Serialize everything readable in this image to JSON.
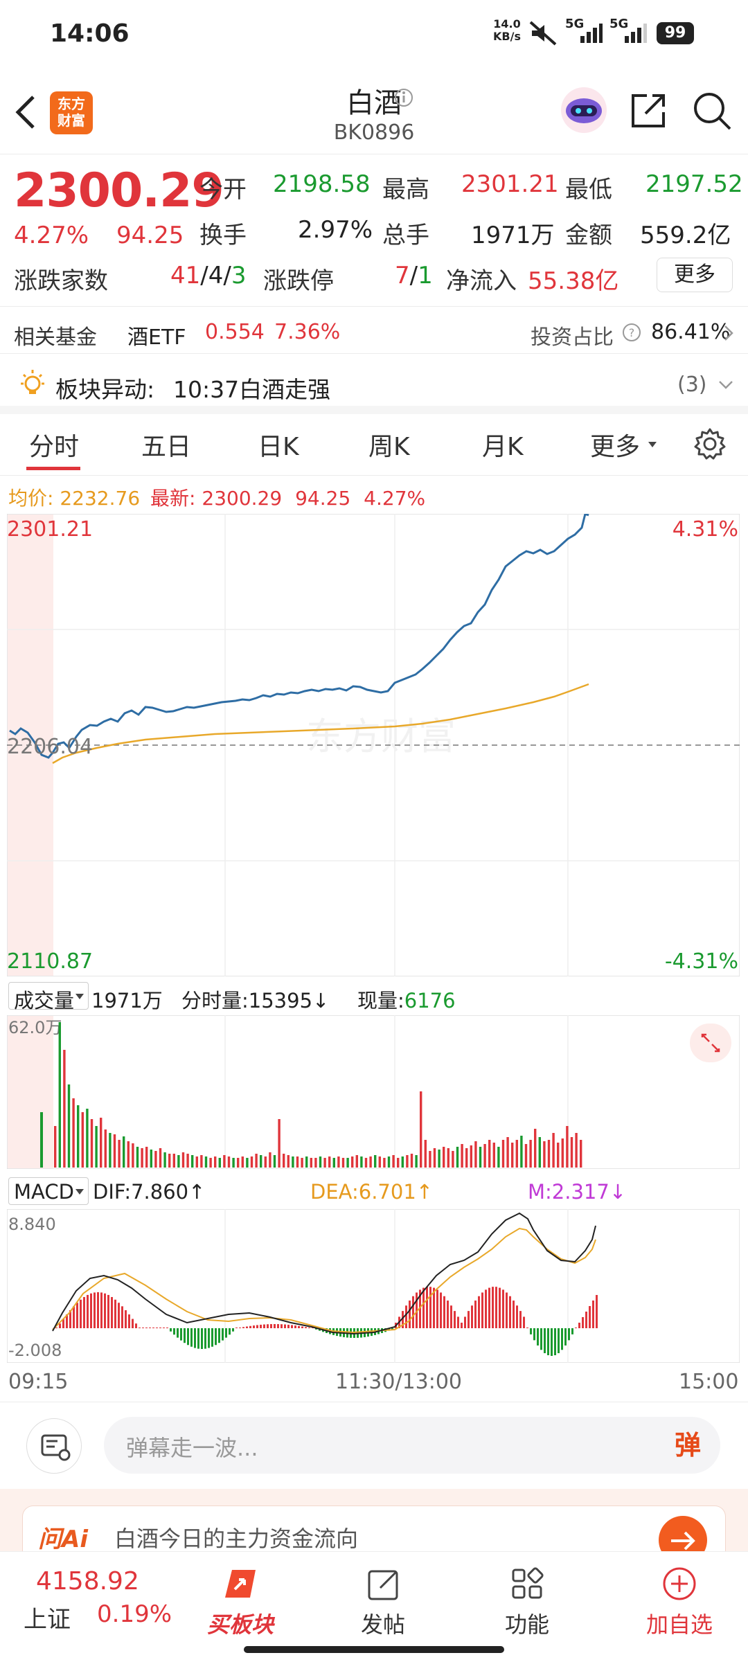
{
  "status": {
    "time": "14:06",
    "net_speed_top": "14.0",
    "net_speed_bottom": "KB/s",
    "sig1": "5G",
    "sig2": "5G",
    "battery": "99"
  },
  "header": {
    "title": "白酒",
    "code": "BK0896"
  },
  "quote": {
    "price": "2300.29",
    "pct": "4.27%",
    "change": "94.25",
    "open_label": "今开",
    "open": "2198.58",
    "high_label": "最高",
    "high": "2301.21",
    "low_label": "最低",
    "low": "2197.52",
    "turnover_label": "换手",
    "turnover": "2.97%",
    "volume_label": "总手",
    "volume": "1971万",
    "amount_label": "金额",
    "amount": "559.2亿",
    "adv_label": "涨跌家数",
    "adv_up": "41",
    "adv_flat": "4",
    "adv_down": "3",
    "limit_label": "涨跌停",
    "limit_up": "7",
    "limit_down": "1",
    "inflow_label": "净流入",
    "inflow": "55.38亿",
    "more": "更多"
  },
  "fund": {
    "label": "相关基金",
    "name": "酒ETF",
    "price": "0.554",
    "pct": "7.36%",
    "ratio_label": "投资占比",
    "ratio": "86.41%"
  },
  "alert": {
    "label": "板块异动:",
    "text": "10:37白酒走强",
    "count": "(3)"
  },
  "tabs": [
    "分时",
    "五日",
    "日K",
    "周K",
    "月K",
    "更多"
  ],
  "intraday": {
    "avg_label": "均价:",
    "avg": "2232.76",
    "latest_label": "最新:",
    "latest": "2300.29",
    "chg": "94.25",
    "pct": "4.27%",
    "ymax": "2301.21",
    "ymid": "2206.04",
    "ymin": "2110.87",
    "pmax": "4.31%",
    "pmin": "-4.31%",
    "watermark": "东方财富"
  },
  "volume": {
    "label": "成交量",
    "total": "1971万",
    "tick_label": "分时量:",
    "tick": "15395",
    "cur_label": "现量:",
    "cur": "6176",
    "ymax": "62.0万"
  },
  "macd": {
    "label": "MACD",
    "dif": "DIF:7.860",
    "dea": "DEA:6.701",
    "m": "M:2.317",
    "ymax": "8.840",
    "ymin": "-2.008"
  },
  "time_axis": [
    "09:15",
    "11:30/13:00",
    "15:00"
  ],
  "comment": {
    "placeholder": "弹幕走一波...",
    "btn": "弹"
  },
  "ai": {
    "brand": "问Ai",
    "text": "白酒今日的主力资金流向"
  },
  "bottom": {
    "index_val": "4158.92",
    "index_name": "上证",
    "index_pct": "0.19%",
    "nav1": "买板块",
    "nav2": "发帖",
    "nav3": "功能",
    "nav4": "加自选"
  }
}
